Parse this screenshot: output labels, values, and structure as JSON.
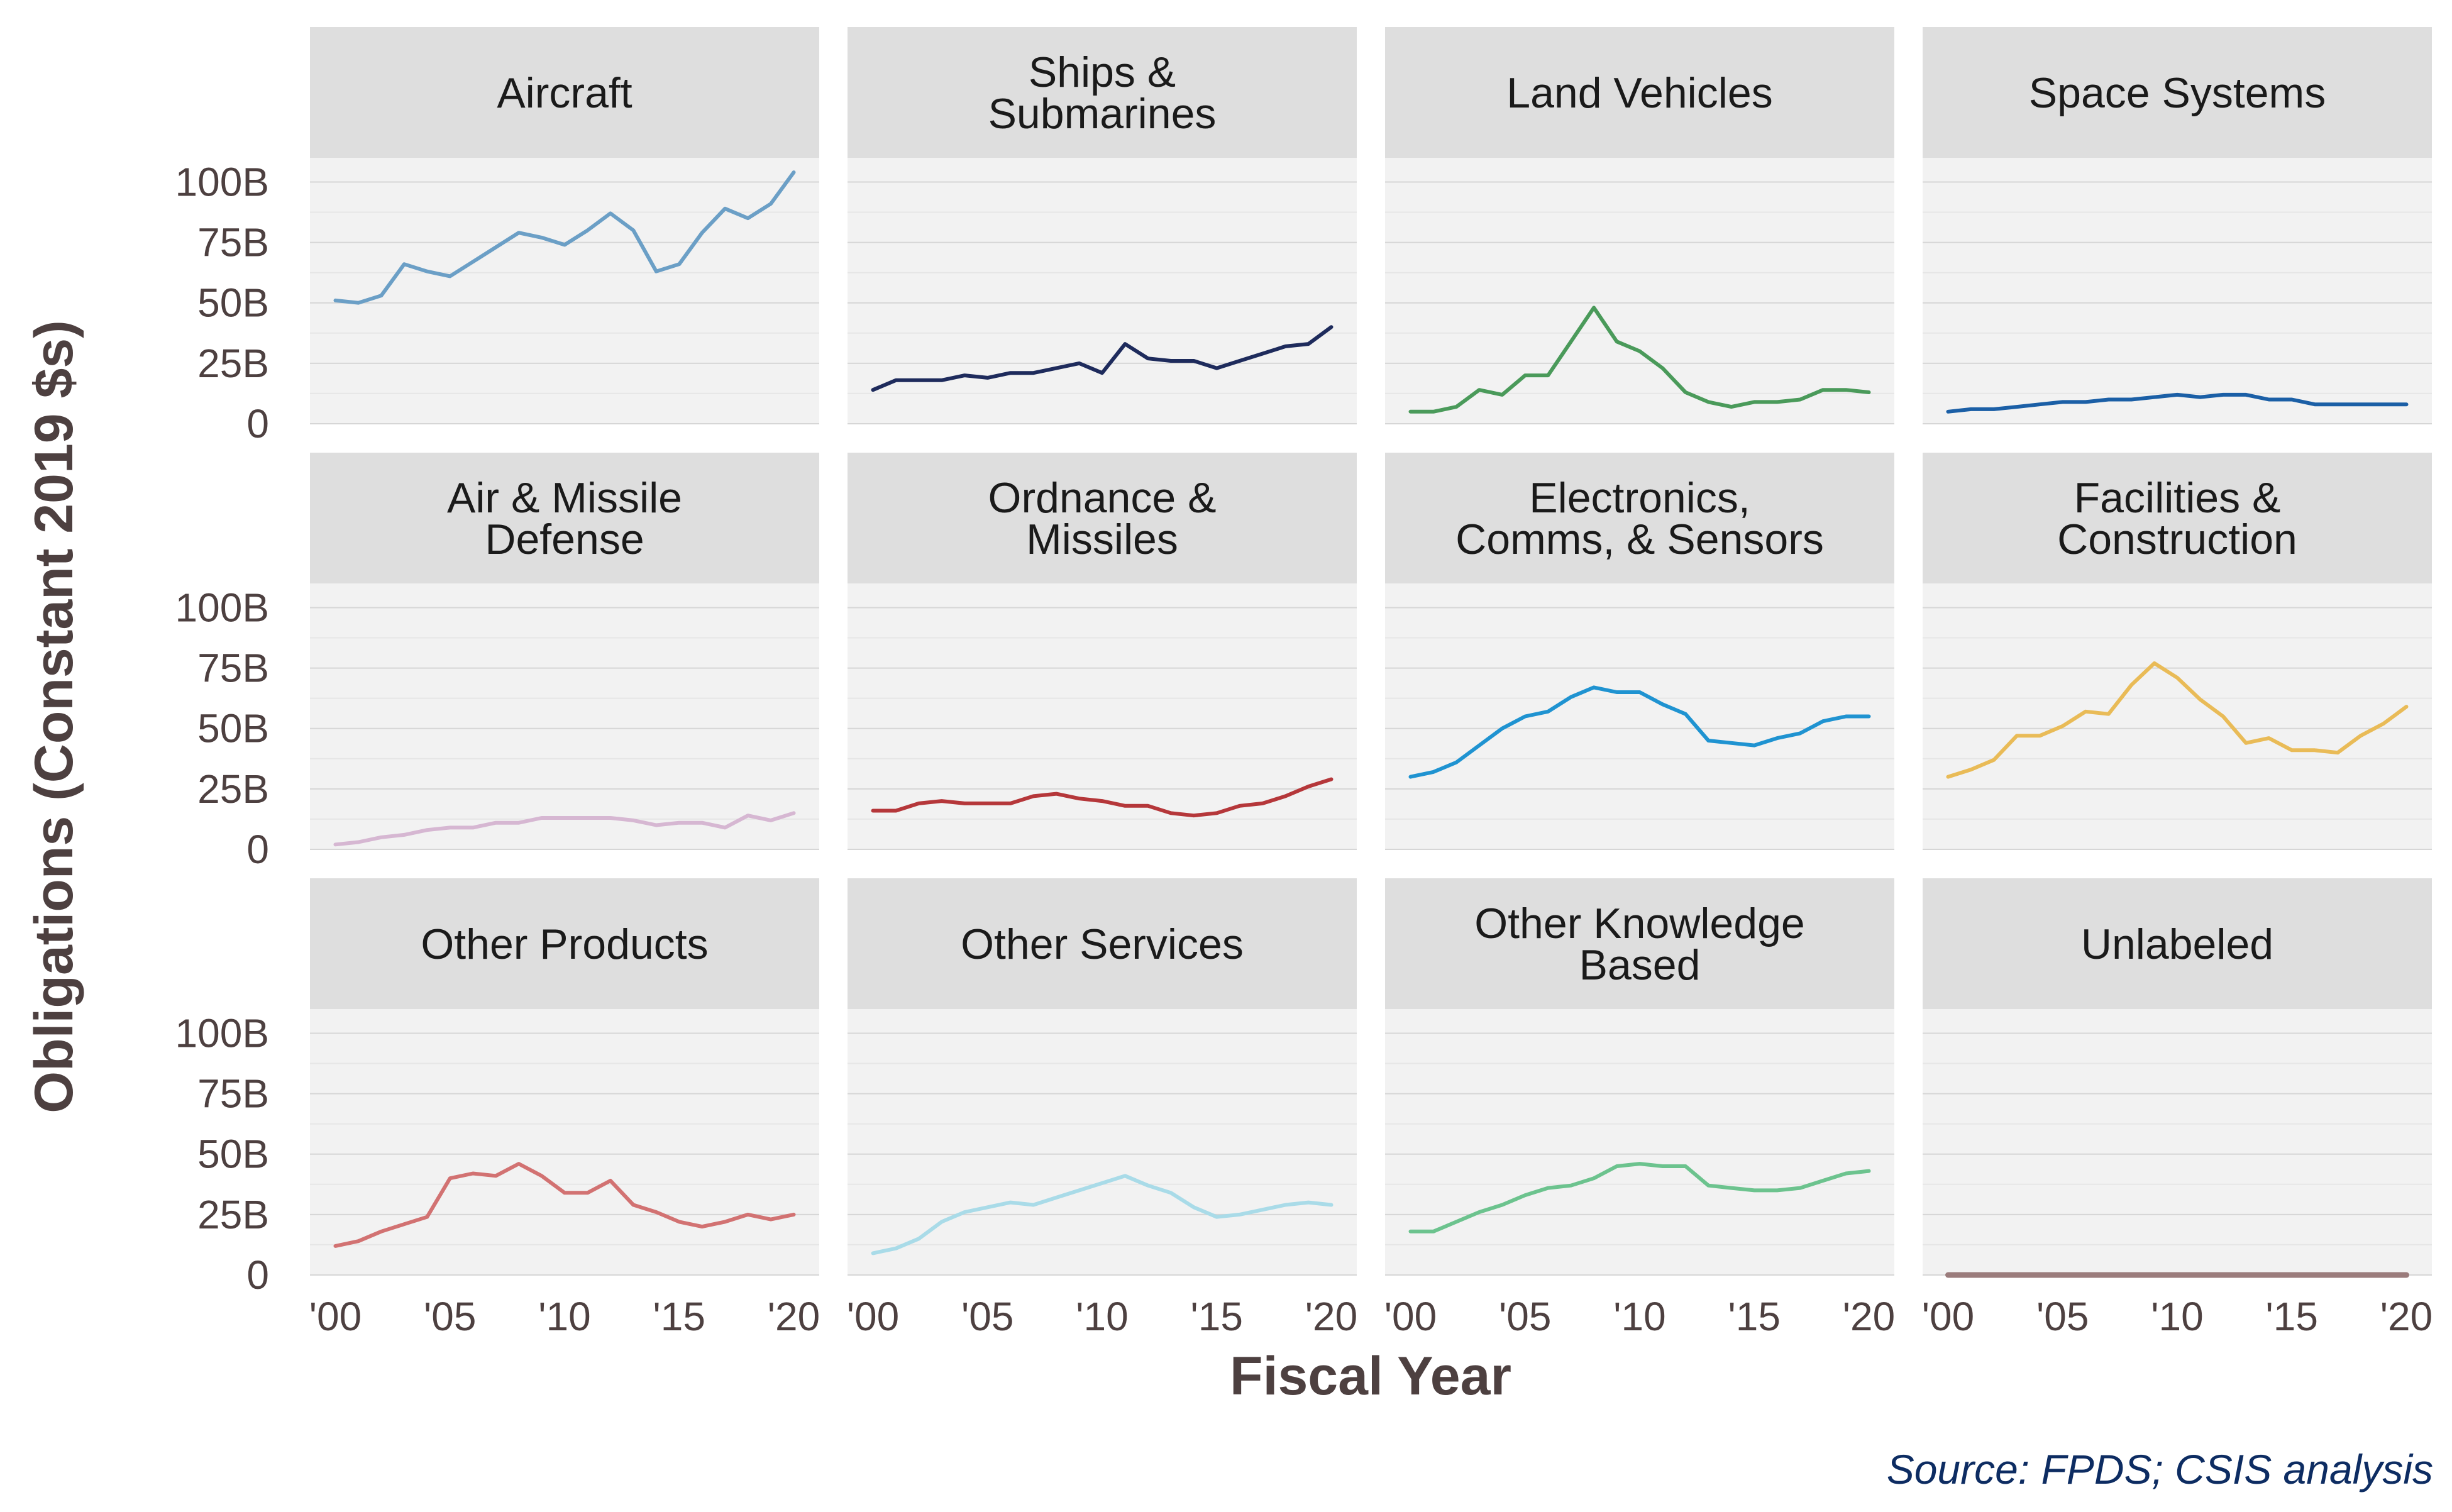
{
  "chart_data": {
    "type": "line",
    "layout": "small-multiples",
    "xlabel": "Fiscal Year",
    "ylabel": "Obligations (Constant 2019 $s)",
    "source": "Source: FPDS; CSIS analysis",
    "x": [
      2000,
      2001,
      2002,
      2003,
      2004,
      2005,
      2006,
      2007,
      2008,
      2009,
      2010,
      2011,
      2012,
      2013,
      2014,
      2015,
      2016,
      2017,
      2018,
      2019,
      2020
    ],
    "x_ticks": [
      "'00",
      "'05",
      "'10",
      "'15",
      "'20"
    ],
    "x_tick_values": [
      2000,
      2005,
      2010,
      2015,
      2020
    ],
    "xlim": [
      2000,
      2020
    ],
    "ylim": [
      0,
      110
    ],
    "y_ticks": [
      "0",
      "25B",
      "50B",
      "75B",
      "100B"
    ],
    "y_tick_values": [
      0,
      25,
      50,
      75,
      100
    ],
    "units": "billions",
    "grid": true,
    "panels": [
      {
        "title": [
          "Aircraft"
        ],
        "color": "#6b9fc6",
        "values": [
          51,
          50,
          53,
          66,
          63,
          61,
          67,
          73,
          79,
          77,
          74,
          80,
          87,
          80,
          63,
          66,
          79,
          89,
          85,
          91,
          104
        ]
      },
      {
        "title": [
          "Ships &",
          "Submarines"
        ],
        "color": "#1e2b5c",
        "values": [
          14,
          18,
          18,
          18,
          20,
          19,
          21,
          21,
          23,
          25,
          21,
          33,
          27,
          26,
          26,
          23,
          26,
          29,
          32,
          33,
          40
        ]
      },
      {
        "title": [
          "Land Vehicles"
        ],
        "color": "#4a9a5a",
        "values": [
          5,
          5,
          7,
          14,
          12,
          20,
          20,
          34,
          48,
          34,
          30,
          23,
          13,
          9,
          7,
          9,
          9,
          10,
          14,
          14,
          13
        ]
      },
      {
        "title": [
          "Space Systems"
        ],
        "color": "#1b5fa6",
        "values": [
          5,
          6,
          6,
          7,
          8,
          9,
          9,
          10,
          10,
          11,
          12,
          11,
          12,
          12,
          10,
          10,
          8,
          8,
          8,
          8,
          8
        ]
      },
      {
        "title": [
          "Air & Missile",
          "Defense"
        ],
        "color": "#d6b7d2",
        "values": [
          2,
          3,
          5,
          6,
          8,
          9,
          9,
          11,
          11,
          13,
          13,
          13,
          13,
          12,
          10,
          11,
          11,
          9,
          14,
          12,
          15
        ]
      },
      {
        "title": [
          "Ordnance &",
          "Missiles"
        ],
        "color": "#b5373a",
        "values": [
          16,
          16,
          19,
          20,
          19,
          19,
          19,
          22,
          23,
          21,
          20,
          18,
          18,
          15,
          14,
          15,
          18,
          19,
          22,
          26,
          29
        ]
      },
      {
        "title": [
          "Electronics,",
          "Comms, & Sensors"
        ],
        "color": "#1f93d1",
        "values": [
          30,
          32,
          36,
          43,
          50,
          55,
          57,
          63,
          67,
          65,
          65,
          60,
          56,
          45,
          44,
          43,
          46,
          48,
          53,
          55,
          55
        ]
      },
      {
        "title": [
          "Facilities &",
          "Construction"
        ],
        "color": "#e9bb57",
        "values": [
          30,
          33,
          37,
          47,
          47,
          51,
          57,
          56,
          68,
          77,
          71,
          62,
          55,
          44,
          46,
          41,
          41,
          40,
          47,
          52,
          59
        ]
      },
      {
        "title": [
          "Other Products"
        ],
        "color": "#d27272",
        "values": [
          12,
          14,
          18,
          21,
          24,
          40,
          42,
          41,
          46,
          41,
          34,
          34,
          39,
          29,
          26,
          22,
          20,
          22,
          25,
          23,
          25
        ]
      },
      {
        "title": [
          "Other Services"
        ],
        "color": "#a9dbe8",
        "values": [
          9,
          11,
          15,
          22,
          26,
          28,
          30,
          29,
          32,
          35,
          38,
          41,
          37,
          34,
          28,
          24,
          25,
          27,
          29,
          30,
          29
        ]
      },
      {
        "title": [
          "Other Knowledge",
          "Based"
        ],
        "color": "#6cc38e",
        "values": [
          18,
          18,
          22,
          26,
          29,
          33,
          36,
          37,
          40,
          45,
          46,
          45,
          45,
          37,
          36,
          35,
          35,
          36,
          39,
          42,
          43
        ]
      },
      {
        "title": [
          "Unlabeled"
        ],
        "color": "#9b7c7c",
        "values": [
          0,
          0,
          0,
          0,
          0,
          0,
          0,
          0,
          0,
          0,
          0,
          0,
          0,
          0,
          0,
          0,
          0,
          0,
          0,
          0,
          0
        ]
      }
    ]
  }
}
